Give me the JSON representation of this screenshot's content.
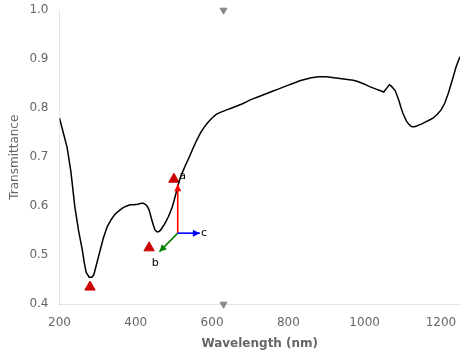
{
  "chart_data": {
    "type": "line",
    "xlabel": "Wavelength (nm)",
    "ylabel": "Transmittance",
    "xlim": [
      200,
      1250
    ],
    "ylim": [
      0.4,
      1.0
    ],
    "xticks": [
      200,
      400,
      600,
      800,
      1000,
      1200
    ],
    "yticks": [
      0.4,
      0.5,
      0.6,
      0.7,
      0.8,
      0.9,
      {
        "value": 1.0,
        "label": "1.0"
      }
    ],
    "grid": false,
    "series": [
      {
        "type": "line",
        "color": "black",
        "line_style": "solid",
        "x": [
          200,
          210,
          220,
          230,
          240,
          250,
          260,
          265,
          270,
          278,
          285,
          290,
          295,
          305,
          315,
          325,
          335,
          345,
          355,
          365,
          375,
          385,
          395,
          405,
          410,
          415,
          420,
          425,
          430,
          435,
          440,
          445,
          450,
          455,
          460,
          465,
          470,
          475,
          480,
          485,
          490,
          495,
          500,
          505,
          510,
          515,
          520,
          530,
          540,
          550,
          560,
          570,
          580,
          590,
          600,
          610,
          620,
          630,
          640,
          650,
          660,
          670,
          680,
          690,
          700,
          710,
          720,
          730,
          740,
          750,
          760,
          770,
          780,
          790,
          800,
          810,
          820,
          830,
          840,
          850,
          860,
          870,
          880,
          890,
          900,
          910,
          920,
          930,
          940,
          950,
          960,
          970,
          980,
          990,
          1000,
          1010,
          1020,
          1030,
          1040,
          1050,
          1060,
          1065,
          1070,
          1080,
          1085,
          1090,
          1095,
          1100,
          1110,
          1115,
          1120,
          1125,
          1130,
          1135,
          1140,
          1150,
          1160,
          1170,
          1180,
          1190,
          1200,
          1210,
          1220,
          1230,
          1240,
          1250
        ],
        "values": [
          0.78,
          0.75,
          0.72,
          0.67,
          0.6,
          0.55,
          0.51,
          0.485,
          0.465,
          0.455,
          0.455,
          0.46,
          0.475,
          0.505,
          0.535,
          0.558,
          0.572,
          0.583,
          0.59,
          0.596,
          0.6,
          0.603,
          0.603,
          0.604,
          0.605,
          0.606,
          0.606,
          0.604,
          0.6,
          0.592,
          0.578,
          0.564,
          0.552,
          0.548,
          0.548,
          0.551,
          0.557,
          0.563,
          0.57,
          0.578,
          0.587,
          0.597,
          0.61,
          0.625,
          0.64,
          0.654,
          0.665,
          0.683,
          0.7,
          0.718,
          0.735,
          0.75,
          0.762,
          0.772,
          0.78,
          0.787,
          0.791,
          0.794,
          0.797,
          0.8,
          0.803,
          0.806,
          0.809,
          0.813,
          0.817,
          0.82,
          0.823,
          0.826,
          0.829,
          0.832,
          0.835,
          0.838,
          0.841,
          0.844,
          0.847,
          0.85,
          0.853,
          0.856,
          0.858,
          0.86,
          0.862,
          0.863,
          0.864,
          0.864,
          0.864,
          0.863,
          0.862,
          0.861,
          0.86,
          0.859,
          0.858,
          0.857,
          0.855,
          0.852,
          0.849,
          0.845,
          0.842,
          0.839,
          0.836,
          0.833,
          0.843,
          0.848,
          0.845,
          0.836,
          0.826,
          0.815,
          0.802,
          0.79,
          0.773,
          0.768,
          0.764,
          0.762,
          0.762,
          0.763,
          0.765,
          0.768,
          0.772,
          0.776,
          0.78,
          0.787,
          0.796,
          0.81,
          0.832,
          0.858,
          0.885,
          0.905
        ]
      },
      {
        "type": "scatter",
        "marker": "triangle",
        "color": "#cc0000",
        "x": [
          280,
          435,
          500
        ],
        "values": [
          0.435,
          0.515,
          0.655
        ]
      },
      {
        "type": "scatter",
        "marker": "triangle_down",
        "color": "#888888",
        "x": [
          630,
          630
        ],
        "values": [
          1.0,
          0.4
        ]
      }
    ],
    "annotations": [
      {
        "text": "a",
        "x": 514,
        "y": 0.65,
        "arrow_start": [
          510,
          0.545
        ],
        "arrow_end": [
          510,
          0.645
        ],
        "color": "red"
      },
      {
        "text": "b",
        "x": 460,
        "y": 0.495,
        "arrow_start": [
          510,
          0.545
        ],
        "arrow_end": [
          462,
          0.507
        ],
        "color": "green"
      },
      {
        "text": "c",
        "x": 571,
        "y": 0.545,
        "arrow_start": [
          510,
          0.545
        ],
        "arrow_end": [
          568,
          0.545
        ],
        "color": "blue"
      }
    ]
  }
}
